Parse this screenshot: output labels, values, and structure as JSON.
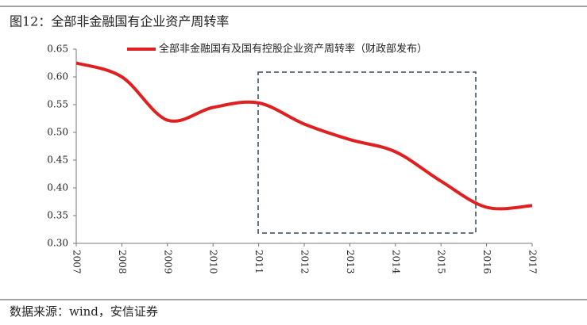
{
  "chart_data": {
    "type": "line",
    "title": "图12：全部非金融国有企业资产周转率",
    "source": "数据来源：wind，安信证券",
    "categories": [
      "2007",
      "2008",
      "2009",
      "2010",
      "2011",
      "2012",
      "2013",
      "2014",
      "2015",
      "2016",
      "2017"
    ],
    "series": [
      {
        "name": "全部非金融国有及国有控股企业资产周转率（财政部发布）",
        "color": "#e02020",
        "values": [
          0.625,
          0.6,
          0.522,
          0.545,
          0.553,
          0.515,
          0.487,
          0.465,
          0.412,
          0.365,
          0.368
        ]
      }
    ],
    "ylim": [
      0.3,
      0.65
    ],
    "yticks": [
      {
        "value": 0.3,
        "label": "0.30"
      },
      {
        "value": 0.35,
        "label": "0.35"
      },
      {
        "value": 0.4,
        "label": "0.40"
      },
      {
        "value": 0.45,
        "label": "0.45"
      },
      {
        "value": 0.5,
        "label": "0.50"
      },
      {
        "value": 0.55,
        "label": "0.55"
      },
      {
        "value": 0.6,
        "label": "0.60"
      },
      {
        "value": 0.65,
        "label": "0.65"
      }
    ]
  }
}
